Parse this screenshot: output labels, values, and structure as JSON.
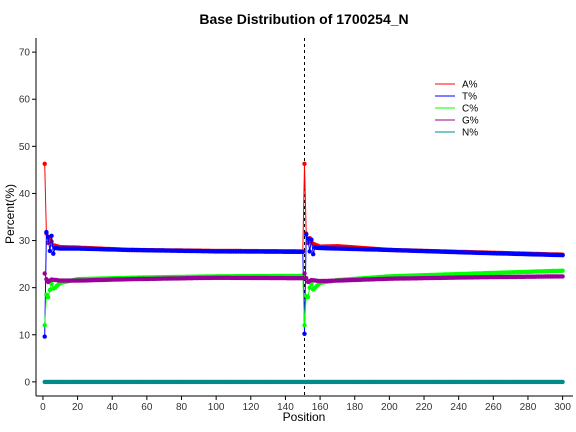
{
  "chart_data": {
    "type": "line",
    "title": "Base Distribution of 1700254_N",
    "xlabel": "Position",
    "ylabel": "Percent(%)",
    "xlim": [
      -4,
      306
    ],
    "ylim": [
      -3,
      73
    ],
    "x_ticks": [
      0,
      20,
      40,
      60,
      80,
      100,
      120,
      140,
      160,
      180,
      200,
      220,
      240,
      260,
      280,
      300
    ],
    "y_ticks": [
      0,
      10,
      20,
      30,
      40,
      50,
      60,
      70
    ],
    "vline_x": 151,
    "grid": false,
    "legend_position": "top-right",
    "x_range": [
      1,
      300
    ],
    "series": [
      {
        "name": "A%",
        "color": "#ff0000",
        "points": [
          [
            1,
            46.3
          ],
          [
            2,
            31.5
          ],
          [
            3,
            29.5
          ],
          [
            4,
            30.5
          ],
          [
            5,
            29.8
          ],
          [
            6,
            29.0
          ],
          [
            8,
            28.8
          ],
          [
            10,
            28.6
          ],
          [
            20,
            28.5
          ],
          [
            50,
            28.0
          ],
          [
            100,
            27.8
          ],
          [
            150,
            27.7
          ],
          [
            151,
            46.3
          ],
          [
            152,
            31.5
          ],
          [
            153,
            29.5
          ],
          [
            154,
            30.5
          ],
          [
            155,
            29.8
          ],
          [
            156,
            29.3
          ],
          [
            158,
            29.0
          ],
          [
            160,
            28.7
          ],
          [
            170,
            28.8
          ],
          [
            200,
            28.0
          ],
          [
            250,
            27.5
          ],
          [
            300,
            27.0
          ]
        ]
      },
      {
        "name": "T%",
        "color": "#0000ff",
        "points": [
          [
            1,
            9.6
          ],
          [
            2,
            31.8
          ],
          [
            3,
            30.8
          ],
          [
            4,
            27.8
          ],
          [
            5,
            31.0
          ],
          [
            6,
            27.2
          ],
          [
            7,
            28.4
          ],
          [
            10,
            28.3
          ],
          [
            20,
            28.3
          ],
          [
            50,
            28.0
          ],
          [
            100,
            27.7
          ],
          [
            150,
            27.6
          ],
          [
            151,
            10.2
          ],
          [
            152,
            31.3
          ],
          [
            153,
            30.4
          ],
          [
            154,
            27.7
          ],
          [
            155,
            30.2
          ],
          [
            156,
            27.1
          ],
          [
            157,
            28.5
          ],
          [
            160,
            28.4
          ],
          [
            200,
            28.0
          ],
          [
            250,
            27.4
          ],
          [
            300,
            26.9
          ]
        ]
      },
      {
        "name": "C%",
        "color": "#00ff00",
        "points": [
          [
            1,
            12.0
          ],
          [
            2,
            18.5
          ],
          [
            3,
            18.0
          ],
          [
            4,
            19.5
          ],
          [
            5,
            20.8
          ],
          [
            6,
            19.8
          ],
          [
            7,
            20.0
          ],
          [
            8,
            20.4
          ],
          [
            10,
            21.0
          ],
          [
            20,
            21.8
          ],
          [
            50,
            22.1
          ],
          [
            100,
            22.4
          ],
          [
            150,
            22.5
          ],
          [
            151,
            12.0
          ],
          [
            152,
            18.2
          ],
          [
            153,
            18.0
          ],
          [
            154,
            20.0
          ],
          [
            155,
            20.8
          ],
          [
            156,
            19.6
          ],
          [
            157,
            20.0
          ],
          [
            160,
            21.0
          ],
          [
            170,
            21.6
          ],
          [
            200,
            22.4
          ],
          [
            250,
            23.0
          ],
          [
            300,
            23.6
          ]
        ]
      },
      {
        "name": "G%",
        "color": "#990099",
        "points": [
          [
            1,
            23.0
          ],
          [
            2,
            21.8
          ],
          [
            3,
            21.2
          ],
          [
            4,
            21.5
          ],
          [
            5,
            21.7
          ],
          [
            8,
            21.6
          ],
          [
            10,
            21.5
          ],
          [
            20,
            21.5
          ],
          [
            50,
            21.8
          ],
          [
            100,
            22.1
          ],
          [
            150,
            22.0
          ],
          [
            151,
            23.0
          ],
          [
            152,
            22.0
          ],
          [
            153,
            21.2
          ],
          [
            154,
            21.4
          ],
          [
            155,
            21.6
          ],
          [
            160,
            21.4
          ],
          [
            170,
            21.5
          ],
          [
            200,
            21.9
          ],
          [
            250,
            22.2
          ],
          [
            300,
            22.4
          ]
        ]
      },
      {
        "name": "N%",
        "color": "#008b8b",
        "points": [
          [
            1,
            0.0
          ],
          [
            300,
            0.0
          ]
        ]
      }
    ]
  }
}
